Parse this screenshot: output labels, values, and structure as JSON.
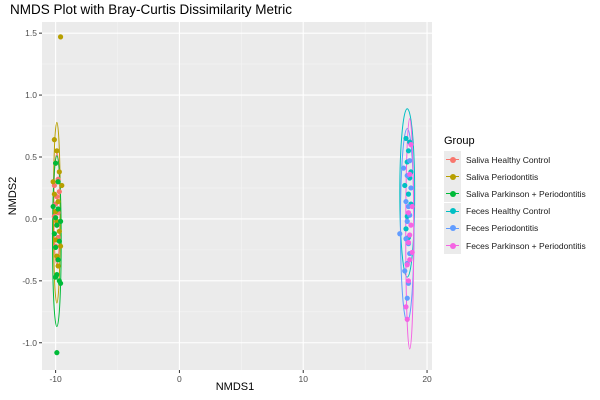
{
  "chart_data": {
    "type": "scatter",
    "title": "NMDS Plot with Bray-Curtis Dissimilarity Metric",
    "xlabel": "NMDS1",
    "ylabel": "NMDS2",
    "xlim": [
      -11.1,
      20.4
    ],
    "ylim": [
      -1.22,
      1.59
    ],
    "xticks": [
      -10,
      0,
      10,
      20
    ],
    "yticks": [
      -1.0,
      -0.5,
      0.0,
      0.5,
      1.0,
      1.5
    ],
    "xtick_labels": [
      "-10",
      "0",
      "10",
      "20"
    ],
    "ytick_labels": [
      "-1.0",
      "-0.5",
      "0.0",
      "0.5",
      "1.0",
      "1.5"
    ],
    "grid": true,
    "legend_title": "Group",
    "legend_position": "right",
    "series": [
      {
        "name": "Saliva Healthy Control",
        "color": "#F8766D",
        "points": [
          [
            -10.0,
            0.45
          ],
          [
            -9.8,
            0.32
          ],
          [
            -10.1,
            0.27
          ],
          [
            -9.7,
            0.22
          ],
          [
            -9.9,
            0.18
          ],
          [
            -10.0,
            0.12
          ],
          [
            -9.8,
            0.05
          ],
          [
            -10.1,
            0.02
          ],
          [
            -9.9,
            -0.05
          ],
          [
            -9.8,
            -0.15
          ],
          [
            -10.0,
            -0.22
          ]
        ],
        "ellipse": {
          "center": [
            -9.9,
            0.08
          ],
          "semi_x": 0.25,
          "semi_y": 0.45,
          "angle_deg": 0
        }
      },
      {
        "name": "Saliva Periodontitis",
        "color": "#B79F00",
        "points": [
          [
            -9.6,
            1.47
          ],
          [
            -10.1,
            0.64
          ],
          [
            -9.9,
            0.55
          ],
          [
            -10.0,
            0.45
          ],
          [
            -9.7,
            0.38
          ],
          [
            -10.2,
            0.3
          ],
          [
            -9.5,
            0.27
          ],
          [
            -10.1,
            0.2
          ],
          [
            -9.8,
            0.14
          ],
          [
            -10.0,
            0.06
          ],
          [
            -9.9,
            -0.02
          ],
          [
            -9.7,
            -0.1
          ],
          [
            -10.0,
            -0.17
          ],
          [
            -9.6,
            -0.22
          ],
          [
            -9.9,
            -0.3
          ],
          [
            -9.8,
            -0.38
          ]
        ],
        "ellipse": {
          "center": [
            -9.9,
            0.05
          ],
          "semi_x": 0.28,
          "semi_y": 0.73,
          "angle_deg": 0
        }
      },
      {
        "name": "Saliva Parkinson + Periodontitis",
        "color": "#00BA38",
        "points": [
          [
            -9.9,
            -1.08
          ],
          [
            -10.2,
            0.1
          ],
          [
            -9.8,
            0.08
          ],
          [
            -10.0,
            0.01
          ],
          [
            -9.6,
            -0.02
          ],
          [
            -9.9,
            -0.05
          ],
          [
            -10.1,
            -0.12
          ],
          [
            -9.7,
            -0.18
          ],
          [
            -10.0,
            -0.23
          ],
          [
            -9.8,
            -0.33
          ],
          [
            -9.9,
            -0.45
          ],
          [
            -10.0,
            -0.47
          ],
          [
            -9.7,
            -0.5
          ],
          [
            -9.6,
            -0.52
          ],
          [
            -9.8,
            0.3
          ],
          [
            -10.0,
            0.45
          ]
        ],
        "ellipse": {
          "center": [
            -9.9,
            -0.18
          ],
          "semi_x": 0.35,
          "semi_y": 0.69,
          "angle_deg": 0
        }
      },
      {
        "name": "Feces Healthy Control",
        "color": "#00BFC4",
        "points": [
          [
            18.3,
            0.65
          ],
          [
            18.6,
            0.62
          ],
          [
            18.5,
            0.55
          ],
          [
            18.4,
            0.46
          ],
          [
            18.7,
            0.38
          ],
          [
            18.6,
            0.33
          ],
          [
            18.2,
            0.27
          ],
          [
            18.5,
            0.2
          ],
          [
            18.7,
            0.12
          ],
          [
            18.4,
            0.02
          ],
          [
            18.3,
            -0.08
          ],
          [
            18.5,
            -0.15
          ]
        ],
        "ellipse": {
          "center": [
            18.4,
            0.21
          ],
          "semi_x": 0.6,
          "semi_y": 0.68,
          "angle_deg": 0
        }
      },
      {
        "name": "Feces Periodontitis",
        "color": "#619CFF",
        "points": [
          [
            18.1,
            0.41
          ],
          [
            18.6,
            0.47
          ],
          [
            18.4,
            0.35
          ],
          [
            18.7,
            0.25
          ],
          [
            18.3,
            0.14
          ],
          [
            18.5,
            0.1
          ],
          [
            18.6,
            0.03
          ],
          [
            18.4,
            -0.02
          ],
          [
            17.8,
            -0.12
          ],
          [
            18.3,
            -0.16
          ],
          [
            18.5,
            -0.2
          ],
          [
            18.6,
            -0.28
          ],
          [
            18.4,
            -0.36
          ],
          [
            18.2,
            -0.42
          ],
          [
            18.5,
            -0.52
          ],
          [
            18.4,
            -0.64
          ]
        ],
        "ellipse": {
          "center": [
            18.4,
            -0.05
          ],
          "semi_x": 0.55,
          "semi_y": 0.78,
          "angle_deg": 0
        }
      },
      {
        "name": "Feces Parkinson + Periodontitis",
        "color": "#F564E3",
        "points": [
          [
            18.7,
            0.6
          ],
          [
            18.6,
            0.36
          ],
          [
            18.8,
            0.1
          ],
          [
            18.5,
            0.05
          ],
          [
            18.7,
            -0.05
          ],
          [
            18.6,
            -0.13
          ],
          [
            18.5,
            -0.19
          ],
          [
            18.8,
            -0.27
          ],
          [
            18.6,
            -0.33
          ],
          [
            18.4,
            -0.37
          ],
          [
            18.5,
            -0.5
          ],
          [
            18.3,
            -0.71
          ],
          [
            18.4,
            -0.81
          ]
        ],
        "ellipse": {
          "center": [
            18.6,
            -0.12
          ],
          "semi_x": 0.32,
          "semi_y": 0.93,
          "angle_deg": 0
        }
      }
    ]
  }
}
